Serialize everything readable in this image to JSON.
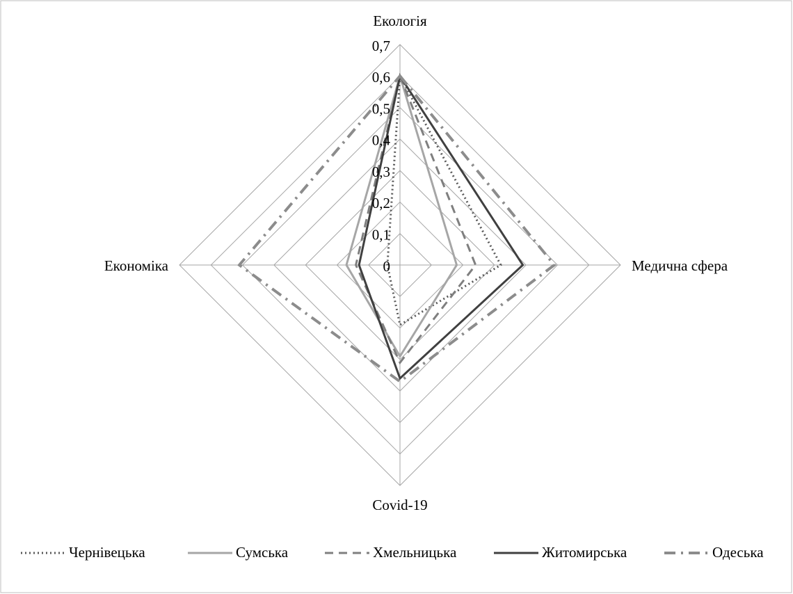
{
  "chart_data": {
    "type": "radar",
    "categories": [
      "Екологія",
      "Медична сфера",
      "Covid-19",
      "Економіка"
    ],
    "series": [
      {
        "name": "Чернівецька",
        "color": "#595959",
        "dash": "dotted",
        "values": [
          0.6,
          0.32,
          0.19,
          0.04
        ]
      },
      {
        "name": "Сумська",
        "color": "#a6a6a6",
        "dash": "solid",
        "values": [
          0.6,
          0.18,
          0.29,
          0.17
        ]
      },
      {
        "name": "Хмельницька",
        "color": "#7f7f7f",
        "dash": "dashed",
        "values": [
          0.6,
          0.24,
          0.31,
          0.14
        ]
      },
      {
        "name": "Житомирська",
        "color": "#404040",
        "dash": "solid",
        "values": [
          0.6,
          0.39,
          0.36,
          0.13
        ]
      },
      {
        "name": "Одеська",
        "color": "#8c8c8c",
        "dash": "dashdot",
        "values": [
          0.6,
          0.49,
          0.37,
          0.51
        ]
      }
    ],
    "ylim": [
      0,
      0.7
    ],
    "yticks": [
      0,
      {
        "value": 0.1,
        "label": "0,1"
      },
      {
        "value": 0.2,
        "label": "0,2"
      },
      {
        "value": 0.3,
        "label": "0,3"
      },
      {
        "value": 0.4,
        "label": "0,4"
      },
      {
        "value": 0.5,
        "label": "0,5"
      },
      {
        "value": 0.6,
        "label": "0,6"
      },
      {
        "value": 0.7,
        "label": "0,7"
      }
    ],
    "grid": true,
    "legend": "bottom"
  }
}
